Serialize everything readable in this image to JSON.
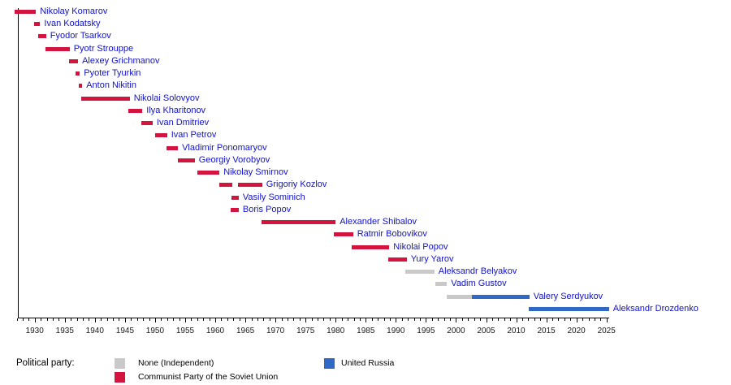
{
  "page": {
    "background": "#ffffff"
  },
  "colors": {
    "independent": "#c9c9c9",
    "cpsu": "#d2143e",
    "united_russia": "#2f68c5",
    "name_link": "#1112cc",
    "axis": "#000000",
    "tick_label": "#1a1a1a"
  },
  "legend": {
    "title": "Political party:",
    "entries": [
      {
        "party": "independent",
        "label": "None (Independent)"
      },
      {
        "party": "cpsu",
        "label": "Communist Party of the Soviet Union"
      },
      {
        "party": "united_russia",
        "label": "United Russia"
      }
    ]
  },
  "chart_data": {
    "type": "bar",
    "subtype": "horizontal-timeline-gantt",
    "title": "",
    "xlabel": "",
    "ylabel": "",
    "grid": false,
    "legend_position": "bottom",
    "x_axis": {
      "min": 1926.7,
      "max": 2025.5,
      "major_tick_start": 1930,
      "major_tick_end": 2025,
      "major_tick_step": 5,
      "minor_tick_step": 1,
      "tick_labels": [
        "1930",
        "1935",
        "1940",
        "1945",
        "1950",
        "1955",
        "1960",
        "1965",
        "1970",
        "1975",
        "1980",
        "1985",
        "1990",
        "1995",
        "2000",
        "2005",
        "2010",
        "2015",
        "2020",
        "2025"
      ]
    },
    "people": [
      {
        "name": "Nikolay Komarov",
        "segments": [
          {
            "start": 1926.7,
            "end": 1930.2,
            "party": "cpsu"
          }
        ]
      },
      {
        "name": "Ivan Kodatsky",
        "segments": [
          {
            "start": 1929.9,
            "end": 1930.9,
            "party": "cpsu"
          }
        ]
      },
      {
        "name": "Fyodor Tsarkov",
        "segments": [
          {
            "start": 1930.6,
            "end": 1931.9,
            "party": "cpsu"
          }
        ]
      },
      {
        "name": "Pyotr Strouppe",
        "segments": [
          {
            "start": 1931.8,
            "end": 1935.8,
            "party": "cpsu"
          }
        ]
      },
      {
        "name": "Alexey Grichmanov",
        "segments": [
          {
            "start": 1935.7,
            "end": 1937.2,
            "party": "cpsu"
          }
        ]
      },
      {
        "name": "Pyoter Tyurkin",
        "segments": [
          {
            "start": 1936.8,
            "end": 1937.5,
            "party": "cpsu"
          }
        ]
      },
      {
        "name": "Anton Nikitin",
        "segments": [
          {
            "start": 1937.3,
            "end": 1937.9,
            "party": "cpsu"
          }
        ]
      },
      {
        "name": "Nikolai Solovyov",
        "segments": [
          {
            "start": 1937.7,
            "end": 1945.8,
            "party": "cpsu"
          }
        ]
      },
      {
        "name": "Ilya Kharitonov",
        "segments": [
          {
            "start": 1945.6,
            "end": 1947.9,
            "party": "cpsu"
          }
        ]
      },
      {
        "name": "Ivan Dmitriev",
        "segments": [
          {
            "start": 1947.7,
            "end": 1949.6,
            "party": "cpsu"
          }
        ]
      },
      {
        "name": "Ivan Petrov",
        "segments": [
          {
            "start": 1950.0,
            "end": 1952.0,
            "party": "cpsu"
          }
        ]
      },
      {
        "name": "Vladimir Ponomaryov",
        "segments": [
          {
            "start": 1951.9,
            "end": 1953.8,
            "party": "cpsu"
          }
        ]
      },
      {
        "name": "Georgiy Vorobyov",
        "segments": [
          {
            "start": 1953.8,
            "end": 1956.6,
            "party": "cpsu"
          }
        ]
      },
      {
        "name": "Nikolay Smirnov",
        "segments": [
          {
            "start": 1957.0,
            "end": 1960.7,
            "party": "cpsu"
          }
        ]
      },
      {
        "name": "Grigoriy Kozlov",
        "segments": [
          {
            "start": 1960.7,
            "end": 1962.8,
            "party": "cpsu"
          },
          {
            "start": 1963.8,
            "end": 1967.8,
            "party": "cpsu"
          }
        ]
      },
      {
        "name": "Vasily Sominich",
        "segments": [
          {
            "start": 1962.7,
            "end": 1963.9,
            "party": "cpsu"
          }
        ]
      },
      {
        "name": "Boris Popov",
        "segments": [
          {
            "start": 1962.6,
            "end": 1963.9,
            "party": "cpsu"
          }
        ]
      },
      {
        "name": "Alexander Shibalov",
        "segments": [
          {
            "start": 1967.7,
            "end": 1980.0,
            "party": "cpsu"
          }
        ]
      },
      {
        "name": "Ratmir Bobovikov",
        "segments": [
          {
            "start": 1979.7,
            "end": 1982.9,
            "party": "cpsu"
          }
        ]
      },
      {
        "name": "Nikolai Popov",
        "segments": [
          {
            "start": 1982.7,
            "end": 1988.9,
            "party": "cpsu"
          }
        ]
      },
      {
        "name": "Yury Yarov",
        "segments": [
          {
            "start": 1988.7,
            "end": 1991.8,
            "party": "cpsu"
          }
        ]
      },
      {
        "name": "Aleksandr Belyakov",
        "segments": [
          {
            "start": 1991.6,
            "end": 1996.4,
            "party": "independent"
          }
        ]
      },
      {
        "name": "Vadim Gustov",
        "segments": [
          {
            "start": 1996.6,
            "end": 1998.5,
            "party": "independent"
          }
        ]
      },
      {
        "name": "Valery Serdyukov",
        "segments": [
          {
            "start": 1998.5,
            "end": 2002.7,
            "party": "independent"
          },
          {
            "start": 2002.7,
            "end": 2012.2,
            "party": "united_russia"
          }
        ]
      },
      {
        "name": "Aleksandr Drozdenko",
        "segments": [
          {
            "start": 2012.1,
            "end": 2025.4,
            "party": "united_russia"
          }
        ]
      }
    ]
  }
}
